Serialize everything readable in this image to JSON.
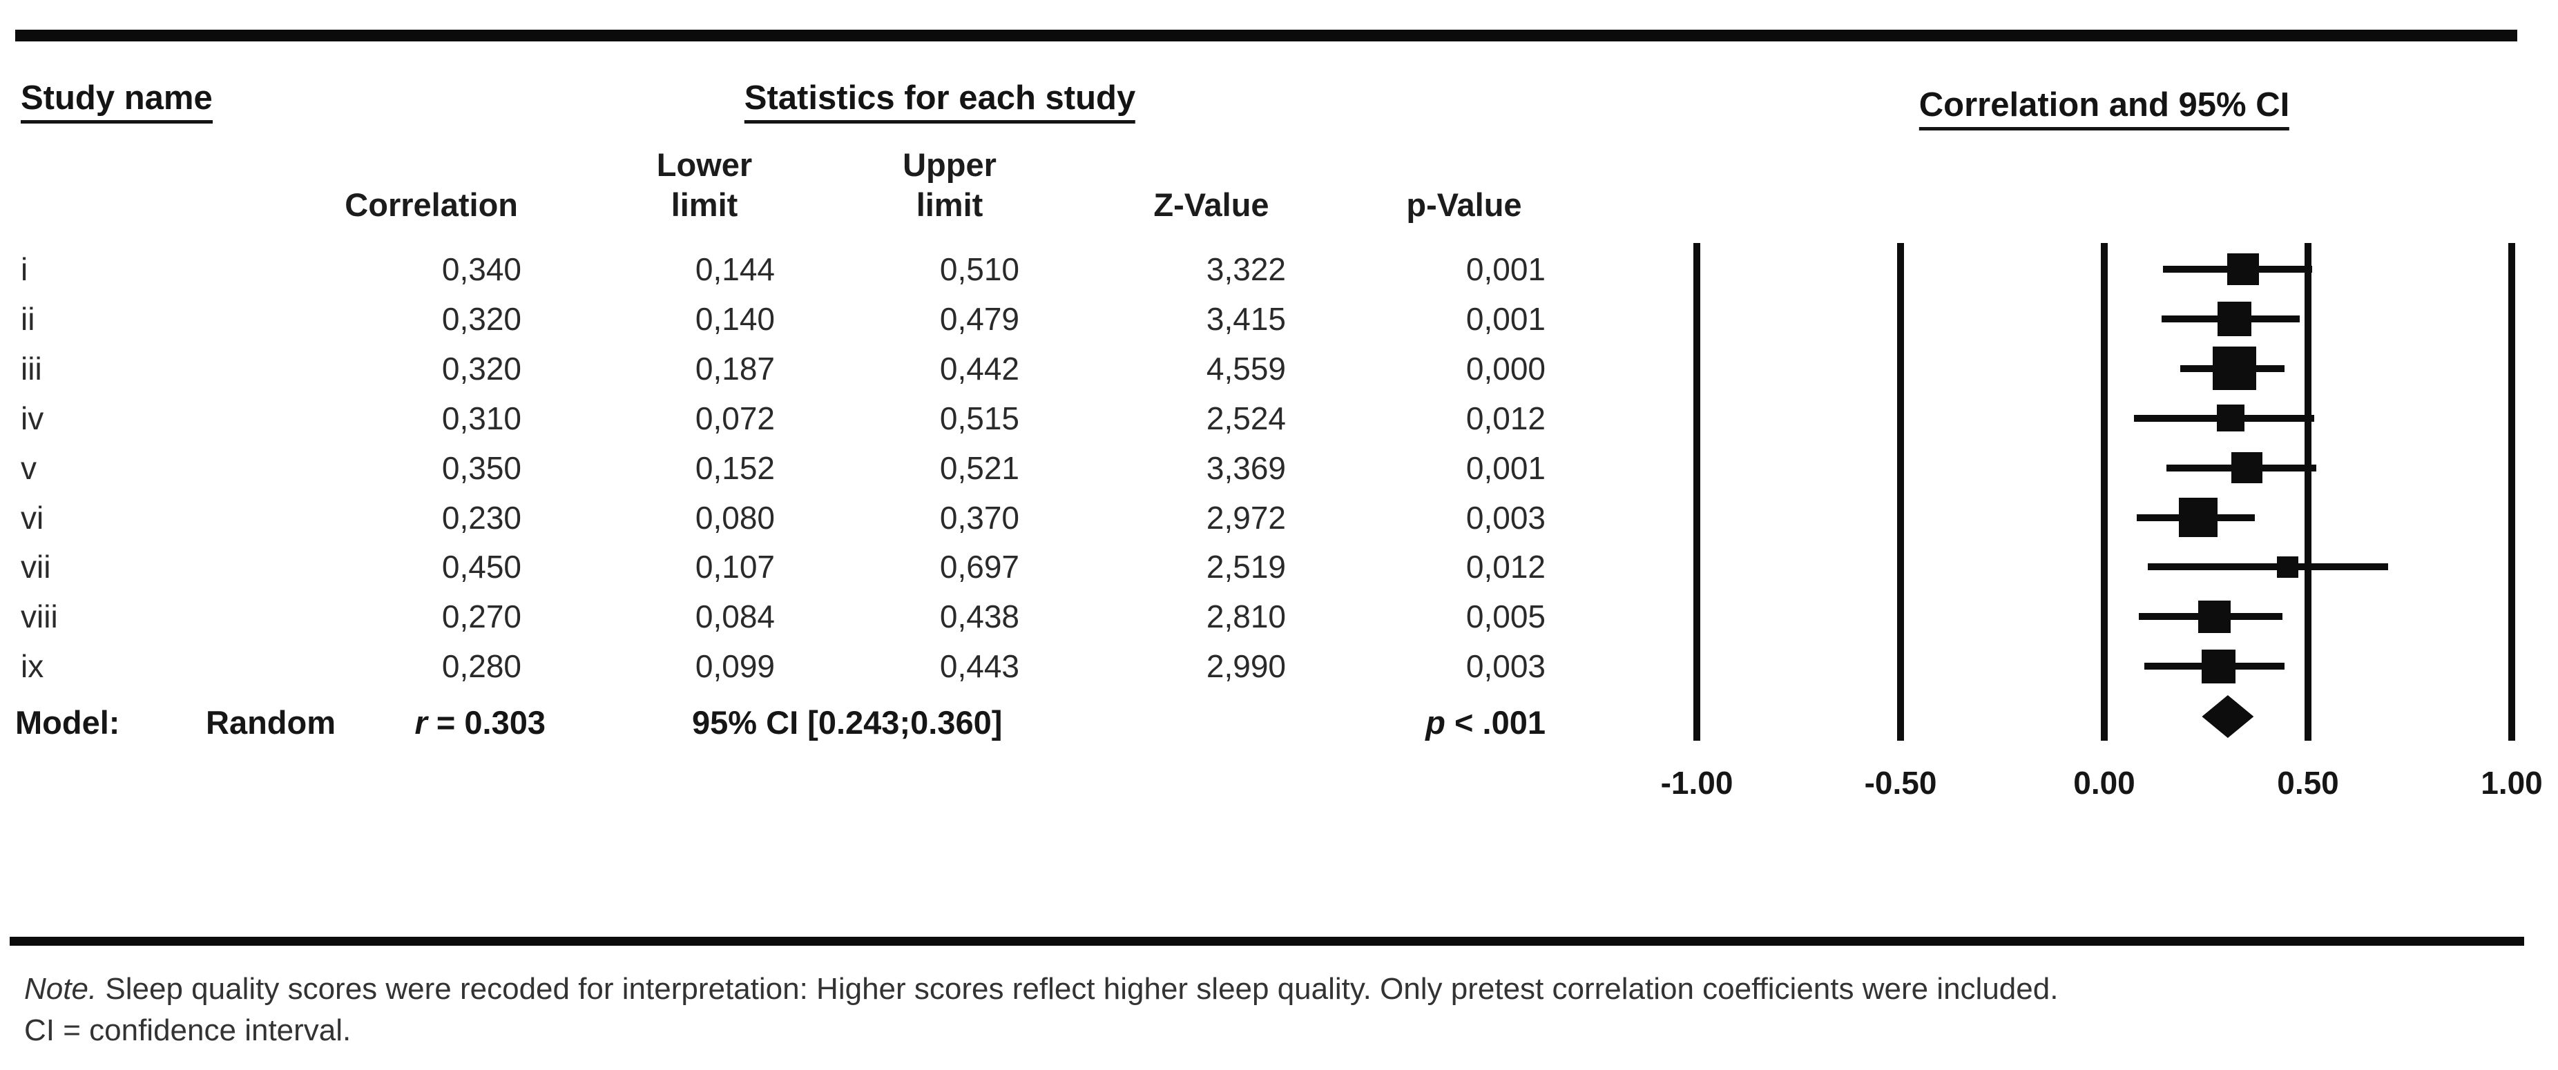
{
  "figure_header": {
    "study_name": "Study name",
    "statistics_title": "Statistics for each study",
    "plot_title": "Correlation and 95% CI"
  },
  "table_columns": {
    "correlation": "Correlation",
    "lower_limit_line1": "Lower",
    "lower_limit_line2": "limit",
    "upper_limit_line1": "Upper",
    "upper_limit_line2": "limit",
    "z_value": "Z-Value",
    "p_value": "p-Value"
  },
  "model_row": {
    "label": "Model:",
    "model_type": "Random",
    "r_symbol": "r",
    "r_rest": " = 0.303",
    "ci_text": "95% CI [0.243;0.360]",
    "p_symbol": "p",
    "p_rest": " < .001"
  },
  "note": {
    "label": "Note.",
    "line1_rest": " Sleep quality scores were recoded for interpretation: Higher scores reflect higher sleep quality. Only pretest correlation coefficients were included.",
    "line2": "CI = confidence interval."
  },
  "chart_data": {
    "type": "forest",
    "title": "Correlation and 95% CI",
    "x_axis": {
      "xlim": [
        -1,
        1
      ],
      "ticks": [
        {
          "value": -1.0,
          "label": "-1.00"
        },
        {
          "value": -0.5,
          "label": "-0.50"
        },
        {
          "value": 0.0,
          "label": "0.00"
        },
        {
          "value": 0.5,
          "label": "0.50"
        },
        {
          "value": 1.0,
          "label": "1.00"
        }
      ]
    },
    "studies": [
      {
        "name": "i",
        "correlation": "0,340",
        "lower": "0,144",
        "upper": "0,510",
        "z": "3,322",
        "p": "0,001"
      },
      {
        "name": "ii",
        "correlation": "0,320",
        "lower": "0,140",
        "upper": "0,479",
        "z": "3,415",
        "p": "0,001"
      },
      {
        "name": "iii",
        "correlation": "0,320",
        "lower": "0,187",
        "upper": "0,442",
        "z": "4,559",
        "p": "0,000"
      },
      {
        "name": "iv",
        "correlation": "0,310",
        "lower": "0,072",
        "upper": "0,515",
        "z": "2,524",
        "p": "0,012"
      },
      {
        "name": "v",
        "correlation": "0,350",
        "lower": "0,152",
        "upper": "0,521",
        "z": "3,369",
        "p": "0,001"
      },
      {
        "name": "vi",
        "correlation": "0,230",
        "lower": "0,080",
        "upper": "0,370",
        "z": "2,972",
        "p": "0,003"
      },
      {
        "name": "vii",
        "correlation": "0,450",
        "lower": "0,107",
        "upper": "0,697",
        "z": "2,519",
        "p": "0,012"
      },
      {
        "name": "viii",
        "correlation": "0,270",
        "lower": "0,084",
        "upper": "0,438",
        "z": "2,810",
        "p": "0,005"
      },
      {
        "name": "ix",
        "correlation": "0,280",
        "lower": "0,099",
        "upper": "0,443",
        "z": "2,990",
        "p": "0,003"
      }
    ],
    "summary": {
      "model_type": "Random",
      "r": 0.303,
      "ci_lower": 0.243,
      "ci_upper": 0.36,
      "p_text": "p < .001"
    },
    "colors": {
      "ink": "#0d0d0d",
      "rule": "#0b0b0b",
      "text": "#2a2a2a"
    }
  }
}
